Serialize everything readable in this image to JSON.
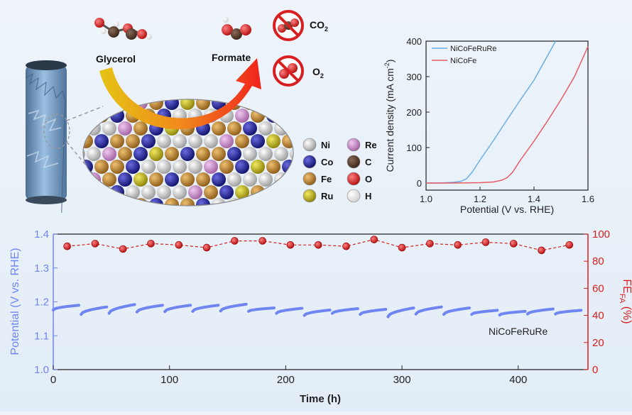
{
  "scheme": {
    "molecules": {
      "glycerol": "Glycerol",
      "formate": "Formate",
      "co2": "CO",
      "co2_sub": "2",
      "o2": "O",
      "o2_sub": "2"
    },
    "legend": [
      {
        "symbol": "Ni",
        "color": "#c8c8c8"
      },
      {
        "symbol": "Re",
        "color": "#c98ac9"
      },
      {
        "symbol": "Co",
        "color": "#1b1b8c"
      },
      {
        "symbol": "C",
        "color": "#4a3328"
      },
      {
        "symbol": "Fe",
        "color": "#b87a24"
      },
      {
        "symbol": "O",
        "color": "#d81e1e"
      },
      {
        "symbol": "Ru",
        "color": "#c4b60e"
      },
      {
        "symbol": "H",
        "color": "#f4f4f4"
      }
    ]
  },
  "chart_data": [
    {
      "type": "line",
      "xlabel": "Potential (V vs. RHE)",
      "ylabel": "Current density (mA cm",
      "ylabel_sup": "-2",
      "ylabel_end": ")",
      "xlim": [
        1.0,
        1.6
      ],
      "ylim": [
        -20,
        400
      ],
      "xticks": [
        "1.0",
        "1.2",
        "1.4",
        "1.6"
      ],
      "yticks": [
        "0",
        "100",
        "200",
        "300",
        "400"
      ],
      "legend_position": "top-left",
      "series": [
        {
          "name": "NiCoFeRuRe",
          "color": "#6aaee6",
          "x": [
            1.0,
            1.05,
            1.1,
            1.13,
            1.15,
            1.17,
            1.2,
            1.25,
            1.3,
            1.35,
            1.4,
            1.44,
            1.48
          ],
          "y": [
            0,
            0,
            2,
            5,
            12,
            30,
            65,
            120,
            178,
            235,
            290,
            345,
            400
          ]
        },
        {
          "name": "NiCoFe",
          "color": "#e85a63",
          "x": [
            1.0,
            1.1,
            1.2,
            1.25,
            1.28,
            1.3,
            1.32,
            1.35,
            1.4,
            1.45,
            1.5,
            1.55,
            1.6
          ],
          "y": [
            0,
            0,
            1,
            3,
            8,
            15,
            30,
            65,
            118,
            175,
            235,
            300,
            385
          ]
        }
      ]
    },
    {
      "type": "line",
      "xlabel": "Time (h)",
      "ylabel_left": "Potential (V vs. RHE)",
      "ylabel_right": "FE",
      "ylabel_right_sub": "FA",
      "ylabel_right_end": " (%)",
      "xlim": [
        0,
        460
      ],
      "ylim_left": [
        1.0,
        1.4
      ],
      "ylim_right": [
        0,
        100
      ],
      "xticks": [
        "0",
        "100",
        "200",
        "300",
        "400"
      ],
      "yticks_left": [
        "1.0",
        "1.1",
        "1.2",
        "1.3",
        "1.4"
      ],
      "yticks_right": [
        "0",
        "20",
        "40",
        "60",
        "80",
        "100"
      ],
      "annotation": "NiCoFeRuRe",
      "series": [
        {
          "axis": "left",
          "color": "#6f86f2",
          "cycle_hours": 24,
          "cycles": [
            {
              "start": 1.176,
              "end": 1.19
            },
            {
              "start": 1.163,
              "end": 1.185
            },
            {
              "start": 1.166,
              "end": 1.192
            },
            {
              "start": 1.17,
              "end": 1.19
            },
            {
              "start": 1.171,
              "end": 1.19
            },
            {
              "start": 1.172,
              "end": 1.19
            },
            {
              "start": 1.173,
              "end": 1.193
            },
            {
              "start": 1.172,
              "end": 1.182
            },
            {
              "start": 1.166,
              "end": 1.181
            },
            {
              "start": 1.16,
              "end": 1.176
            },
            {
              "start": 1.166,
              "end": 1.18
            },
            {
              "start": 1.163,
              "end": 1.178
            },
            {
              "start": 1.156,
              "end": 1.182
            },
            {
              "start": 1.164,
              "end": 1.185
            },
            {
              "start": 1.163,
              "end": 1.182
            },
            {
              "start": 1.163,
              "end": 1.175
            },
            {
              "start": 1.161,
              "end": 1.172
            },
            {
              "start": 1.164,
              "end": 1.179
            },
            {
              "start": 1.164,
              "end": 1.175
            }
          ]
        },
        {
          "axis": "right",
          "color": "#d81e1e",
          "x": [
            12,
            36,
            60,
            84,
            108,
            132,
            156,
            180,
            204,
            228,
            252,
            276,
            300,
            324,
            348,
            372,
            396,
            420,
            444
          ],
          "y": [
            91,
            93,
            89,
            93,
            92,
            90,
            95,
            95,
            92,
            92,
            91,
            96,
            90,
            93,
            92,
            94,
            93,
            88,
            92
          ]
        }
      ]
    }
  ]
}
